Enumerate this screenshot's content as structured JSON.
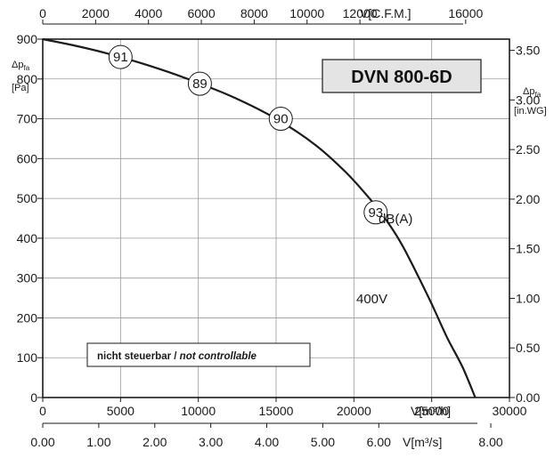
{
  "chart_data": {
    "type": "line",
    "title": "DVN 800-6D",
    "x": {
      "label": "V[m³/h]",
      "range": [
        0,
        30000
      ],
      "ticks": [
        0,
        5000,
        10000,
        15000,
        20000,
        25000,
        30000
      ],
      "tick_labels": [
        "0",
        "5000",
        "10000",
        "15000",
        "20000",
        "25000",
        "30000"
      ]
    },
    "x_top": {
      "label": "V[C.F.M.]",
      "ticks": [
        0,
        2000,
        4000,
        6000,
        8000,
        10000,
        12000,
        16000
      ],
      "tick_labels": [
        "0",
        "2000",
        "4000",
        "6000",
        "8000",
        "10000",
        "12000",
        "16000"
      ]
    },
    "x_bottom2": {
      "label": "V[m³/s]",
      "ticks": [
        0,
        1,
        2,
        3,
        4,
        5,
        6,
        8
      ],
      "tick_labels": [
        "0.00",
        "1.00",
        "2.00",
        "3.00",
        "4.00",
        "5.00",
        "6.00",
        "8.00"
      ]
    },
    "y": {
      "label": "Δp",
      "label_sub": "fa",
      "unit": "[Pa]",
      "range": [
        0,
        900
      ],
      "ticks": [
        0,
        100,
        200,
        300,
        400,
        500,
        600,
        700,
        800,
        900
      ],
      "tick_labels": [
        "0",
        "100",
        "200",
        "300",
        "400",
        "500",
        "600",
        "700",
        "800",
        "900"
      ]
    },
    "y_right": {
      "label": "Δp",
      "label_sub": "fa",
      "unit": "[in.WG]",
      "ticks": [
        0,
        0.5,
        1,
        1.5,
        2,
        2.5,
        3,
        3.5
      ],
      "tick_labels": [
        "0.00",
        "0.50",
        "1.00",
        "1.50",
        "2.00",
        "2.50",
        "3.00",
        "3.50"
      ]
    },
    "grid": true,
    "series": [
      {
        "name": "400V",
        "points": [
          [
            0,
            900
          ],
          [
            2500,
            880
          ],
          [
            5000,
            855
          ],
          [
            7500,
            825
          ],
          [
            10000,
            790
          ],
          [
            12500,
            750
          ],
          [
            15000,
            700
          ],
          [
            17500,
            635
          ],
          [
            19500,
            565
          ],
          [
            21000,
            500
          ],
          [
            22000,
            450
          ],
          [
            23000,
            390
          ],
          [
            24000,
            315
          ],
          [
            25000,
            235
          ],
          [
            26000,
            150
          ],
          [
            27000,
            75
          ],
          [
            27800,
            0
          ]
        ]
      }
    ],
    "sound_markers": [
      {
        "x": 5000,
        "y": 855,
        "label": "91"
      },
      {
        "x": 10100,
        "y": 788,
        "label": "89"
      },
      {
        "x": 15300,
        "y": 700,
        "label": "90"
      },
      {
        "x": 21400,
        "y": 465,
        "label": "93"
      }
    ],
    "sound_unit": "dB(A)",
    "note": {
      "bold": "nicht steuerbar / ",
      "italic": "not controllable"
    }
  }
}
